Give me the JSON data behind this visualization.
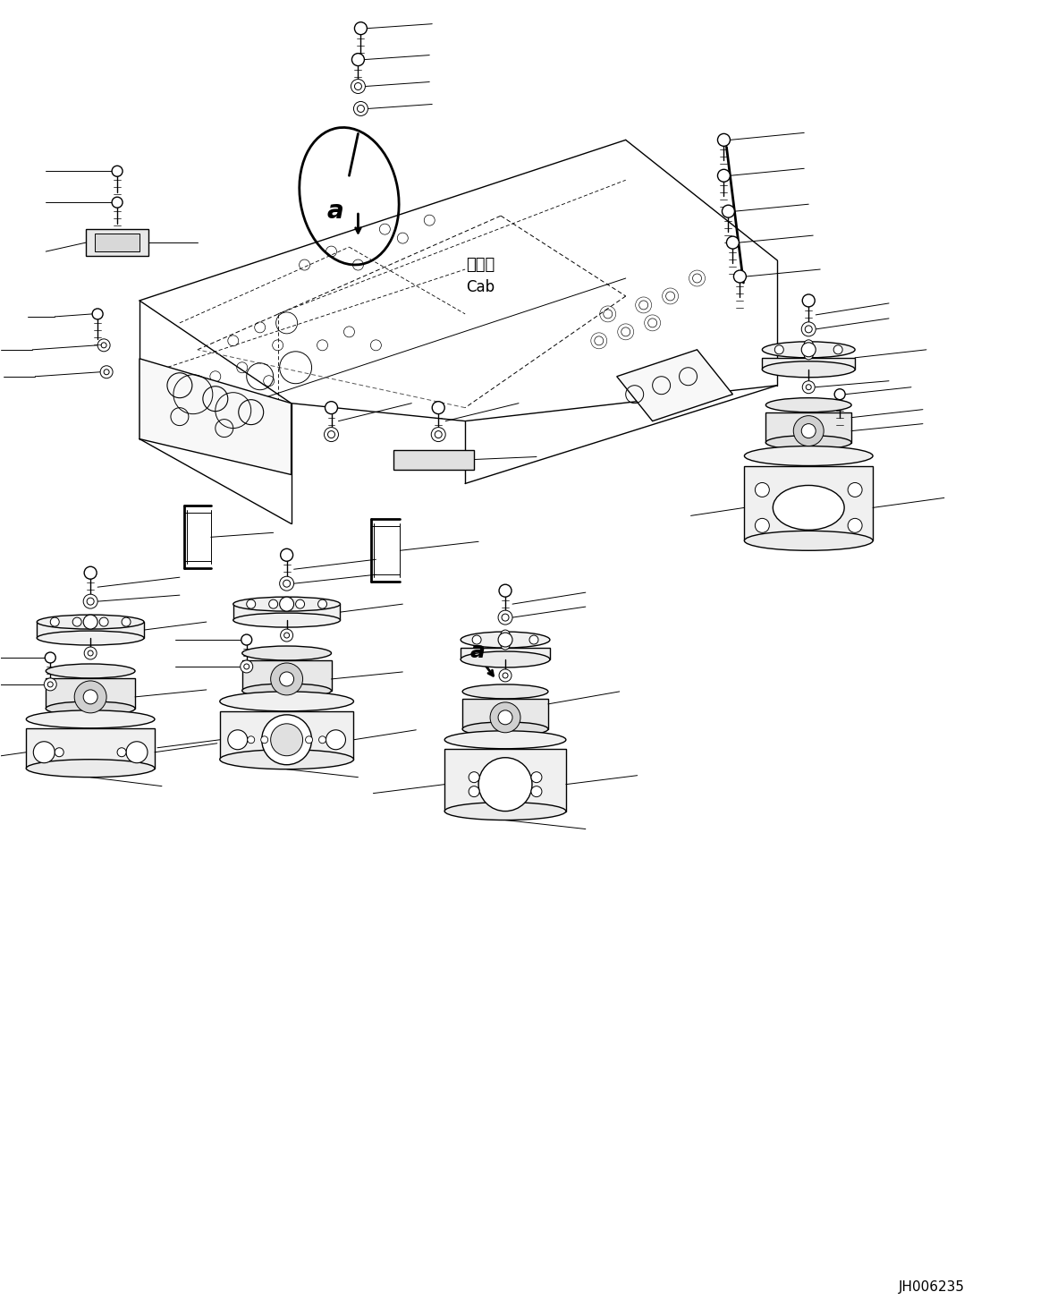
{
  "bg_color": "#ffffff",
  "line_color": "#000000",
  "fig_width": 11.63,
  "fig_height": 14.63,
  "dpi": 100,
  "watermark_text": "JH006235",
  "cab_label_jp": "キャブ",
  "cab_label_en": "Cab",
  "label_a": "a"
}
